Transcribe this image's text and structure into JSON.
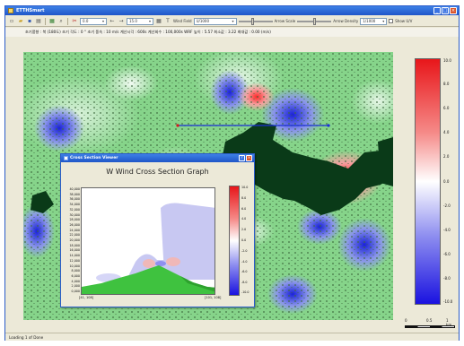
{
  "window": {
    "title": "ETTHSmart",
    "controls": [
      "_",
      "□",
      "×"
    ]
  },
  "toolbar": {
    "combo1": "0.0",
    "combo2": "15.0",
    "label_wind_field": "Wind Field",
    "combo3": "U/1000",
    "label_arrow_scale": "Arrow Scale",
    "label_arrow_density": "Arrow Density",
    "combo4": "1/1000",
    "checkbox_label": "Show U/V",
    "icons": [
      "new-icon",
      "open-icon",
      "save-icon",
      "print-icon",
      "select-icon",
      "zoom-icon",
      "cut-icon",
      "arrow-left-icon",
      "arrow-right-icon",
      "grid-icon",
      "text-icon"
    ]
  },
  "infobar": {
    "text": "초기풍향 : 북 (180도) 초기 각도 : 0 ° 초기 풍속 : 10 m/s  계산시각 : 600s  계산회수 : 100,000s  WRF 높이 : 5.57  최소값 : 3.22  최대값 : 0.00 (m/s)"
  },
  "colorbar": {
    "labels": [
      "10.0",
      "8.0",
      "6.0",
      "4.0",
      "2.0",
      "0.0",
      "-2.0",
      "-4.0",
      "-6.0",
      "-8.0",
      "-10.0"
    ]
  },
  "scalebar": {
    "labels": [
      "0",
      "0.5",
      "1 km"
    ]
  },
  "statusbar": {
    "text": "Loading 1 of Done"
  },
  "dialog": {
    "title": "Cross Section Viewer",
    "graph_title": "W Wind Cross Section Graph",
    "controls": [
      "?",
      "×"
    ],
    "y_ticks": [
      "40,000",
      "38,000",
      "36,000",
      "34,000",
      "32,000",
      "30,000",
      "28,000",
      "26,000",
      "24,000",
      "22,000",
      "20,000",
      "18,000",
      "16,000",
      "14,000",
      "12,000",
      "10,000",
      "8,000",
      "6,000",
      "4,000",
      "2,000",
      "0,000"
    ],
    "x_tick_left": "[41, 108]",
    "x_tick_right": "[101, 108]",
    "colorbar_labels": [
      "10.0",
      "8.0",
      "6.0",
      "4.0",
      "2.0",
      "0.0",
      "-2.0",
      "-4.0",
      "-6.0",
      "-8.0",
      "-10.0"
    ]
  },
  "colors": {
    "title_blue": "#1f56c8",
    "terrain_green": "#3fc23f",
    "building_dark": "#0a3a18",
    "updraft_red": "#e8161a",
    "downdraft_blue": "#1a12e0",
    "section_line_blue": "#1a2fd6",
    "section_line_red": "#d61a1a"
  }
}
